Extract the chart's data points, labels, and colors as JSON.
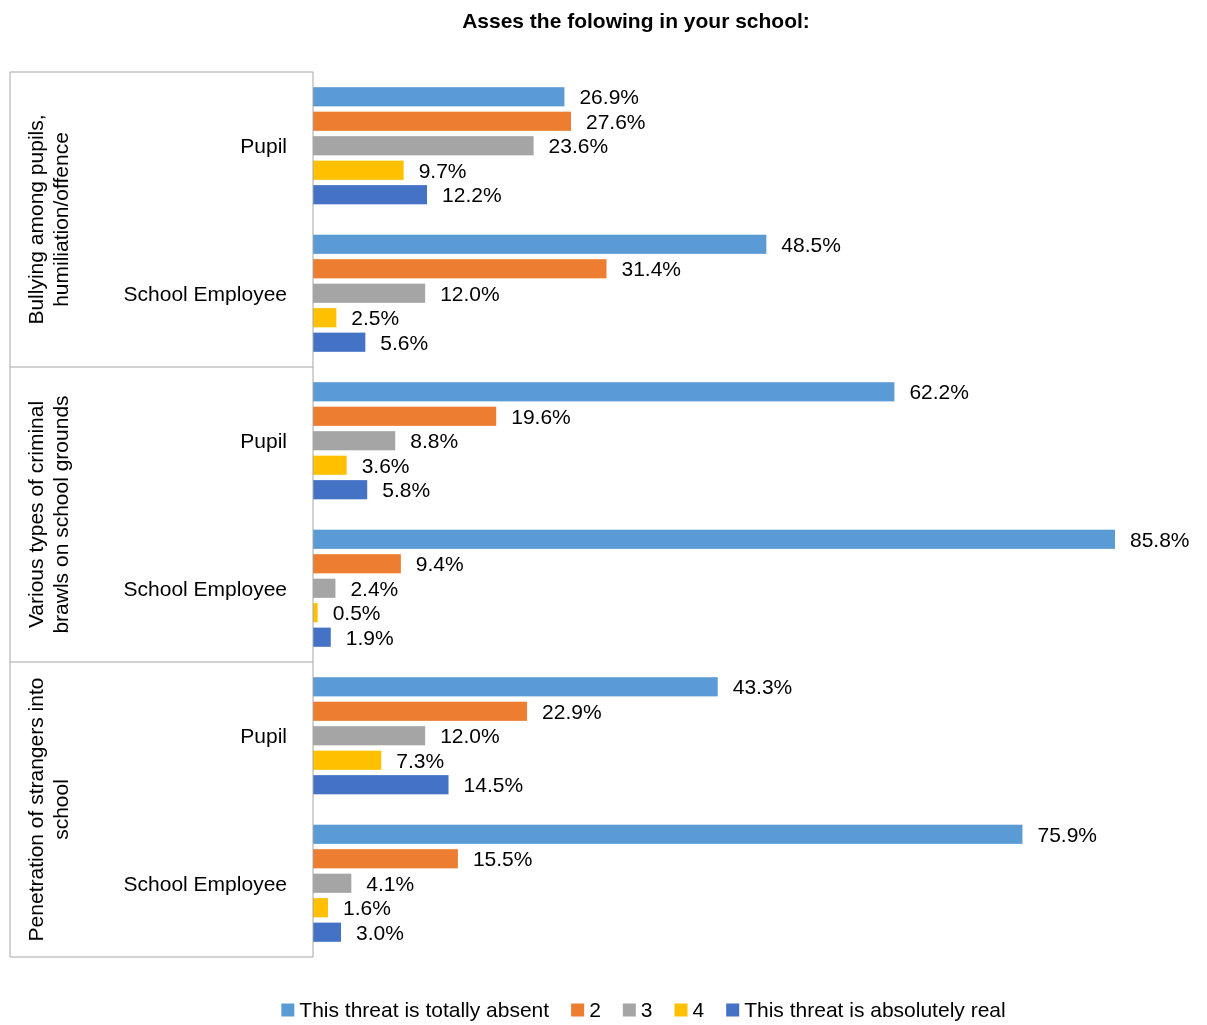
{
  "chart_data": {
    "type": "bar",
    "orientation": "horizontal",
    "title": "Asses the folowing in your school:",
    "categories": [
      "Pupil",
      "School Employee",
      "Pupil",
      "School Employee",
      "Pupil",
      "School Employee"
    ],
    "annotations": [
      "Bullying among pupils, humiliation/offence",
      "Various types of criminal brawls on school grounds",
      "Penetration of strangers into school"
    ],
    "series": [
      {
        "name": "This threat is totally absent",
        "color": "#5b9bd5",
        "values": [
          26.9,
          48.5,
          62.2,
          85.8,
          43.3,
          75.9
        ],
        "value_labels": [
          "26.9%",
          "48.5%",
          "62.2%",
          "85.8%",
          "43.3%",
          "75.9%"
        ]
      },
      {
        "name": "2",
        "color": "#ed7d31",
        "values": [
          27.6,
          31.4,
          19.6,
          9.4,
          22.9,
          15.5
        ],
        "value_labels": [
          "27.6%",
          "31.4%",
          "19.6%",
          "9.4%",
          "22.9%",
          "15.5%"
        ]
      },
      {
        "name": "3",
        "color": "#a5a5a5",
        "values": [
          23.6,
          12.0,
          8.8,
          2.4,
          12.0,
          4.1
        ],
        "value_labels": [
          "23.6%",
          "12.0%",
          "8.8%",
          "2.4%",
          "12.0%",
          "4.1%"
        ]
      },
      {
        "name": "4",
        "color": "#ffc000",
        "values": [
          9.7,
          2.5,
          3.6,
          0.5,
          7.3,
          1.6
        ],
        "value_labels": [
          "9.7%",
          "2.5%",
          "3.6%",
          "0.5%",
          "7.3%",
          "1.6%"
        ]
      },
      {
        "name": "This threat is absolutely real",
        "color": "#4472c4",
        "values": [
          12.2,
          5.6,
          5.8,
          1.9,
          14.5,
          3.0
        ],
        "value_labels": [
          "12.2%",
          "5.6%",
          "5.8%",
          "1.9%",
          "14.5%",
          "3.0%"
        ]
      }
    ],
    "legend": "bottom"
  }
}
